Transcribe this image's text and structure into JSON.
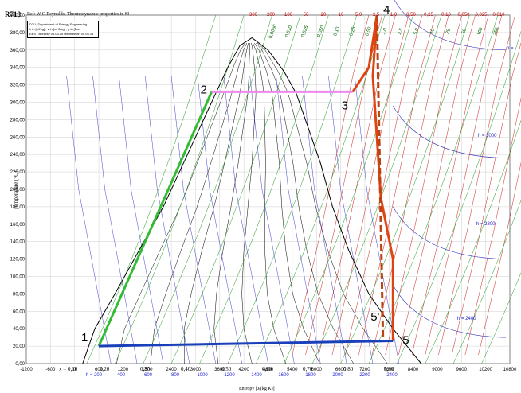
{
  "chart_data": {
    "type": "line",
    "title": "R718",
    "subtitle": "Ref: W C Reynolds: Thermodynamic properties in SI",
    "info_box": [
      "DTU, Department of Energy Engineering",
      "h in [kJ/kg] ; v in [m^3/kg] ; p in [Bar]",
      "EES - Bonicsy 05.03.05 Hedridsson 04.05.18"
    ],
    "xlabel": "Entropy [J/(kg K)]",
    "ylabel": "Temperature [°C]",
    "xlim": [
      -1200,
      10800
    ],
    "ylim": [
      0,
      400
    ],
    "x_ticks": [
      "-1200",
      "-600",
      "0",
      "600",
      "1200",
      "1800",
      "2400",
      "3000",
      "3600",
      "4200",
      "4800",
      "5400",
      "6000",
      "6600",
      "7200",
      "7800",
      "8400",
      "9000",
      "9600",
      "10200",
      "10800"
    ],
    "y_ticks": [
      "0,00",
      "20,00",
      "40,00",
      "60,00",
      "80,00",
      "100,00",
      "120,00",
      "140,00",
      "160,00",
      "180,00",
      "200,00",
      "220,00",
      "240,00",
      "260,00",
      "280,00",
      "300,00",
      "320,00",
      "340,00",
      "360,00",
      "380,00",
      "400,00"
    ],
    "grid": true,
    "dome_left": [
      [
        200,
        0
      ],
      [
        500,
        40
      ],
      [
        1000,
        80
      ],
      [
        1600,
        130
      ],
      [
        2200,
        180
      ],
      [
        2700,
        230
      ],
      [
        3100,
        270
      ],
      [
        3500,
        310
      ],
      [
        3800,
        340
      ],
      [
        4100,
        365
      ],
      [
        4400,
        374
      ]
    ],
    "dome_right": [
      [
        4400,
        374
      ],
      [
        4800,
        360
      ],
      [
        5200,
        335
      ],
      [
        5500,
        310
      ],
      [
        5800,
        270
      ],
      [
        6100,
        230
      ],
      [
        6400,
        180
      ],
      [
        6800,
        130
      ],
      [
        7300,
        80
      ],
      [
        7900,
        40
      ],
      [
        8600,
        0
      ]
    ],
    "quality_labels": [
      "x = 0,10",
      "0,20",
      "0,30",
      "0,40",
      "0,50",
      "0,60",
      "0,70",
      "0,80",
      "0,90"
    ],
    "quality_values": [
      0.1,
      0.2,
      0.3,
      0.4,
      0.5,
      0.6,
      0.7,
      0.8,
      0.9
    ],
    "enthalpy_labels": [
      "h = 200",
      "400",
      "600",
      "800",
      "1000",
      "1200",
      "1400",
      "1600",
      "1800",
      "2000",
      "2200",
      "2400"
    ],
    "enthalpy_labels_right": [
      "h = 2400",
      "h = 2800",
      "h = 3000",
      "h ="
    ],
    "pressure_labels_top": [
      "300",
      "200",
      "100",
      "50",
      "20",
      "10",
      "5,0",
      "2,5",
      "1,0",
      "0,50",
      "0,25",
      "0,10",
      "0,050",
      "0,025",
      "0,010"
    ],
    "volume_labels_top": [
      "0,0050",
      "0,010",
      "0,025",
      "0,050",
      "0,10",
      "0,25",
      "0,50",
      "1,0",
      "2,5",
      "5,0",
      "10",
      "25",
      "50",
      "100",
      "250"
    ],
    "cycle_points": [
      {
        "label": "1",
        "s": 600,
        "T": 20
      },
      {
        "label": "2",
        "s": 3400,
        "T": 312
      },
      {
        "label": "3",
        "s": 6900,
        "T": 312
      },
      {
        "label": "4",
        "s": 7500,
        "T": 400
      },
      {
        "label": "5",
        "s": 7900,
        "T": 26
      },
      {
        "label": "5'",
        "s": 7700,
        "T": 40
      }
    ],
    "series": [
      {
        "values": [
          [
            600,
            20
          ],
          [
            3400,
            312
          ]
        ],
        "color": "#33bb33"
      },
      {
        "values": [
          [
            3400,
            312
          ],
          [
            6900,
            312
          ]
        ],
        "color": "#ee88ee"
      },
      {
        "values": [
          [
            6900,
            312
          ],
          [
            7300,
            340
          ],
          [
            7500,
            400
          ],
          [
            7400,
            330
          ],
          [
            7500,
            260
          ],
          [
            7600,
            190
          ],
          [
            7900,
            120
          ],
          [
            7900,
            26
          ]
        ],
        "color": "#dd4411"
      },
      {
        "values": [
          [
            7500,
            400
          ],
          [
            7650,
            30
          ]
        ],
        "color": "#bb4411",
        "dash": true
      },
      {
        "values": [
          [
            600,
            20
          ],
          [
            7900,
            26
          ]
        ],
        "color": "#1a3fbb"
      }
    ]
  }
}
